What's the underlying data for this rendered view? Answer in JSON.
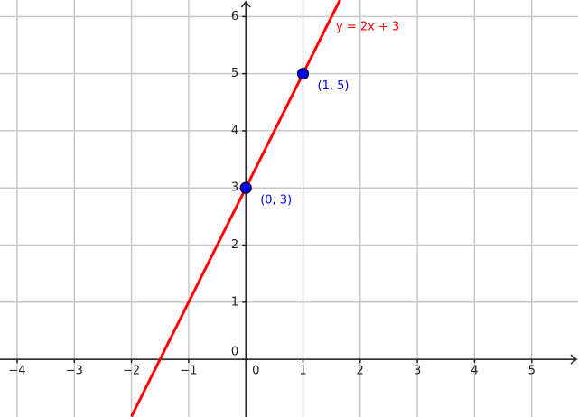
{
  "chart_data": {
    "type": "line",
    "xlim": [
      -4.3,
      5.81
    ],
    "ylim": [
      -1.01,
      6.29
    ],
    "xticks": [
      {
        "value": -4,
        "label": "−4"
      },
      {
        "value": -3,
        "label": "−3"
      },
      {
        "value": -2,
        "label": "−2"
      },
      {
        "value": -1,
        "label": "−1"
      },
      0,
      1,
      2,
      3,
      4,
      5
    ],
    "yticks": [
      0,
      1,
      2,
      3,
      4,
      5,
      6
    ],
    "grid": true,
    "series": [
      {
        "name": "y = 2x + 3",
        "color": "#ff0000",
        "x": [
          -2,
          1.65
        ],
        "values": [
          -1,
          6.3
        ]
      },
      {
        "type": "scatter",
        "color": "#0000ff",
        "x": [
          0,
          1
        ],
        "values": [
          3,
          5
        ],
        "value_labels": [
          "(0, 3)",
          "(1, 5)"
        ]
      }
    ]
  }
}
